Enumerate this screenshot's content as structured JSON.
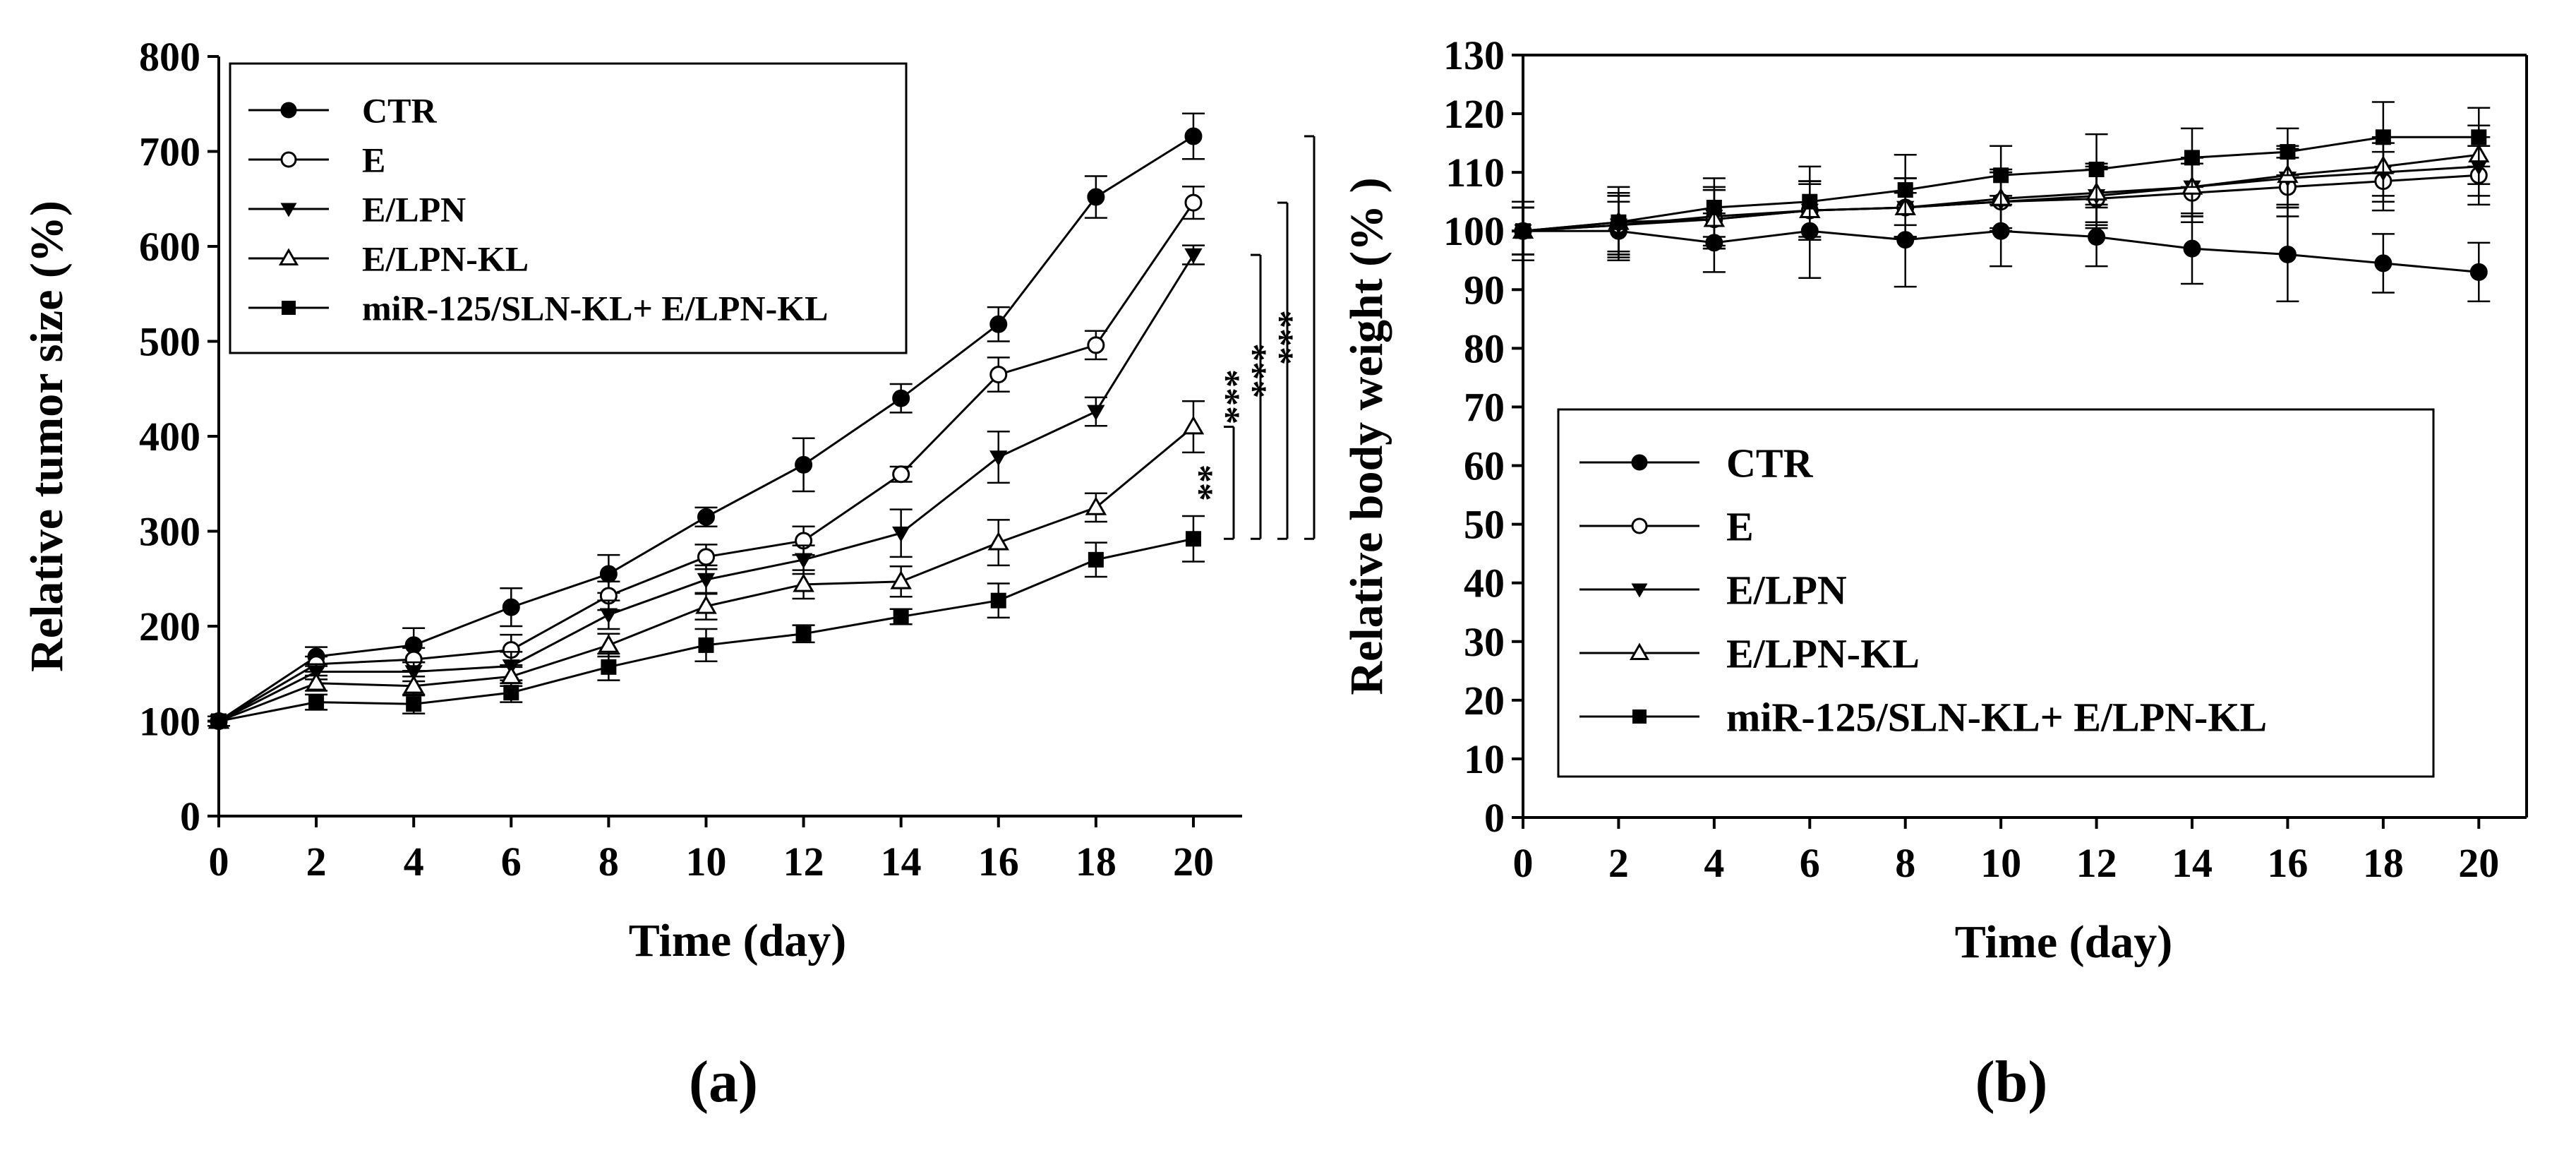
{
  "chart_data": [
    {
      "panel_label": "(a)",
      "type": "line",
      "title": "",
      "xlabel": "Time (day)",
      "ylabel": "Relative tumor size (%)",
      "xlim": [
        0,
        21
      ],
      "ylim": [
        0,
        800
      ],
      "x_ticks": [
        0,
        2,
        4,
        6,
        8,
        10,
        12,
        14,
        16,
        18,
        20
      ],
      "y_ticks": [
        0,
        100,
        200,
        300,
        400,
        500,
        600,
        700,
        800
      ],
      "grid": false,
      "legend_position": "top-left",
      "x": [
        0,
        2,
        4,
        6,
        8,
        10,
        12,
        14,
        16,
        18,
        20
      ],
      "series": [
        {
          "name": "CTR",
          "marker": "circle-filled",
          "values": [
            100,
            168,
            180,
            220,
            255,
            315,
            370,
            440,
            518,
            652,
            716
          ],
          "errors": [
            5,
            10,
            18,
            20,
            20,
            10,
            28,
            15,
            18,
            22,
            24
          ]
        },
        {
          "name": "E",
          "marker": "circle-open",
          "values": [
            100,
            160,
            165,
            175,
            232,
            273,
            290,
            360,
            465,
            496,
            646
          ],
          "errors": [
            5,
            8,
            12,
            16,
            15,
            13,
            15,
            8,
            18,
            15,
            17
          ]
        },
        {
          "name": "E/LPN",
          "marker": "triangle-down-filled",
          "values": [
            100,
            152,
            152,
            158,
            212,
            249,
            270,
            298,
            378,
            426,
            591
          ],
          "errors": [
            5,
            8,
            10,
            15,
            15,
            15,
            15,
            25,
            27,
            15,
            10
          ]
        },
        {
          "name": "E/LPN-KL",
          "marker": "triangle-up-open",
          "values": [
            100,
            140,
            137,
            147,
            180,
            221,
            244,
            247,
            288,
            325,
            410
          ],
          "errors": [
            5,
            8,
            10,
            10,
            12,
            14,
            15,
            16,
            24,
            15,
            27
          ]
        },
        {
          "name": "miR-125/SLN-KL+ E/LPN-KL",
          "marker": "square-filled",
          "values": [
            100,
            120,
            118,
            130,
            157,
            180,
            192,
            210,
            227,
            270,
            292
          ],
          "errors": [
            5,
            8,
            10,
            10,
            14,
            17,
            9,
            8,
            18,
            18,
            24
          ]
        }
      ],
      "significance": [
        {
          "label": "**",
          "from_series": "E/LPN-KL",
          "to_series": "miR-125/SLN-KL+ E/LPN-KL"
        },
        {
          "label": "***",
          "from_series": "E/LPN",
          "to_series": "miR-125/SLN-KL+ E/LPN-KL"
        },
        {
          "label": "***",
          "from_series": "E",
          "to_series": "miR-125/SLN-KL+ E/LPN-KL"
        },
        {
          "label": "***",
          "from_series": "CTR",
          "to_series": "miR-125/SLN-KL+ E/LPN-KL"
        }
      ]
    },
    {
      "panel_label": "(b)",
      "type": "line",
      "title": "",
      "xlabel": "Time (day)",
      "ylabel": "Relative body weight (% )",
      "xlim": [
        0,
        21
      ],
      "ylim": [
        0,
        130
      ],
      "x_ticks": [
        0,
        2,
        4,
        6,
        8,
        10,
        12,
        14,
        16,
        18,
        20
      ],
      "y_ticks": [
        0,
        10,
        20,
        30,
        40,
        50,
        60,
        70,
        80,
        90,
        100,
        110,
        120,
        130
      ],
      "grid": false,
      "legend_position": "bottom-center",
      "x": [
        0,
        2,
        4,
        6,
        8,
        10,
        12,
        14,
        16,
        18,
        20
      ],
      "series": [
        {
          "name": "CTR",
          "marker": "circle-filled",
          "values": [
            100,
            100,
            98,
            100,
            98.5,
            100,
            99,
            97,
            96,
            94.5,
            93
          ],
          "errors": [
            5,
            5,
            5,
            8,
            8,
            6,
            5,
            6,
            8,
            5,
            5
          ]
        },
        {
          "name": "E",
          "marker": "circle-open",
          "values": [
            100,
            101,
            102,
            103.5,
            104,
            105,
            105.5,
            106.5,
            107.5,
            108.5,
            109.5
          ],
          "errors": [
            4,
            5,
            5,
            5,
            5,
            5,
            5,
            5,
            5,
            5,
            5
          ]
        },
        {
          "name": "E/LPN",
          "marker": "triangle-down-filled",
          "values": [
            100,
            101,
            102.5,
            103.5,
            104,
            105,
            106,
            107.5,
            109,
            110,
            111
          ],
          "errors": [
            4,
            5,
            5,
            5,
            5,
            5,
            5,
            5,
            5,
            5,
            5
          ]
        },
        {
          "name": "E/LPN-KL",
          "marker": "triangle-up-open",
          "values": [
            100,
            101.5,
            102,
            103.5,
            104,
            105.5,
            106.5,
            107.5,
            109.5,
            111,
            113
          ],
          "errors": [
            4,
            5,
            5,
            5,
            5,
            5,
            5,
            5,
            5,
            5,
            5
          ]
        },
        {
          "name": "miR-125/SLN-KL+ E/LPN-KL",
          "marker": "square-filled",
          "values": [
            100,
            101.5,
            104,
            105,
            107,
            109.5,
            110.5,
            112.5,
            113.5,
            116,
            116
          ],
          "errors": [
            4,
            6,
            5,
            6,
            6,
            5,
            6,
            5,
            4,
            6,
            5
          ]
        }
      ]
    }
  ]
}
